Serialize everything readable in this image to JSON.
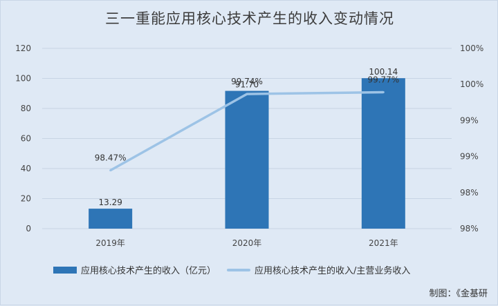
{
  "title": "三一重能应用核心技术产生的收入变动情况",
  "credit": "制图：《金基研",
  "colors": {
    "bar": "#2e75b6",
    "line": "#9dc3e6",
    "grid": "#c7d4e4"
  },
  "chart_data": {
    "type": "bar",
    "categories": [
      "2019年",
      "2020年",
      "2021年"
    ],
    "series": [
      {
        "name": "应用核心技术产生的收入（亿元）",
        "type": "bar",
        "values": [
          13.29,
          91.7,
          100.14
        ],
        "labels": [
          "13.29",
          "91.70",
          "100.14"
        ],
        "axis": "left"
      },
      {
        "name": "应用核心技术产生的收入/主营业务收入",
        "type": "line",
        "values": [
          98.47,
          99.74,
          99.77
        ],
        "labels": [
          "98.47%",
          "99.74%",
          "99.77%"
        ],
        "axis": "right"
      }
    ],
    "ylim": [
      0,
      120
    ],
    "yticks": [
      "0",
      "20",
      "40",
      "60",
      "80",
      "100",
      "120"
    ],
    "y2lim": [
      97.5,
      100.5
    ],
    "y2ticks": [
      "98%",
      "98%",
      "99%",
      "99%",
      "100%",
      "100%"
    ],
    "grid": true,
    "legend": "bottom"
  }
}
